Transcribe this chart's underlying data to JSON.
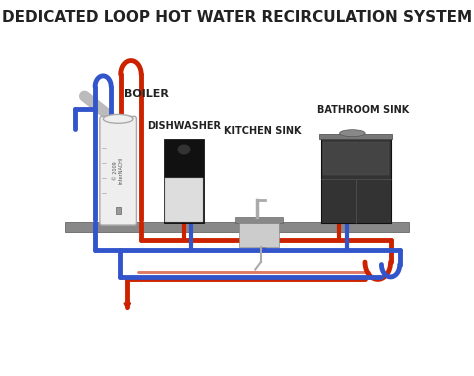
{
  "title": "DEDICATED LOOP HOT WATER RECIRCULATION SYSTEM",
  "title_fontsize": 11,
  "title_color": "#222222",
  "bg_color": "#ffffff",
  "labels": {
    "boiler": "BOILER",
    "dishwasher": "DISHWASHER",
    "kitchen_sink": "KITCHEN SINK",
    "bathroom_sink": "BATHROOM SINK"
  },
  "hot_color": "#cc2200",
  "cold_color": "#3355cc",
  "pipe_lw": 3.5,
  "floor_color": "#888888",
  "boiler_body_color": "#eeeeee",
  "boiler_body_edge": "#aaaaaa",
  "dishwasher_dark": "#111111",
  "dishwasher_light": "#dddddd",
  "bathroom_dark": "#333333",
  "bathroom_top": "#777777"
}
